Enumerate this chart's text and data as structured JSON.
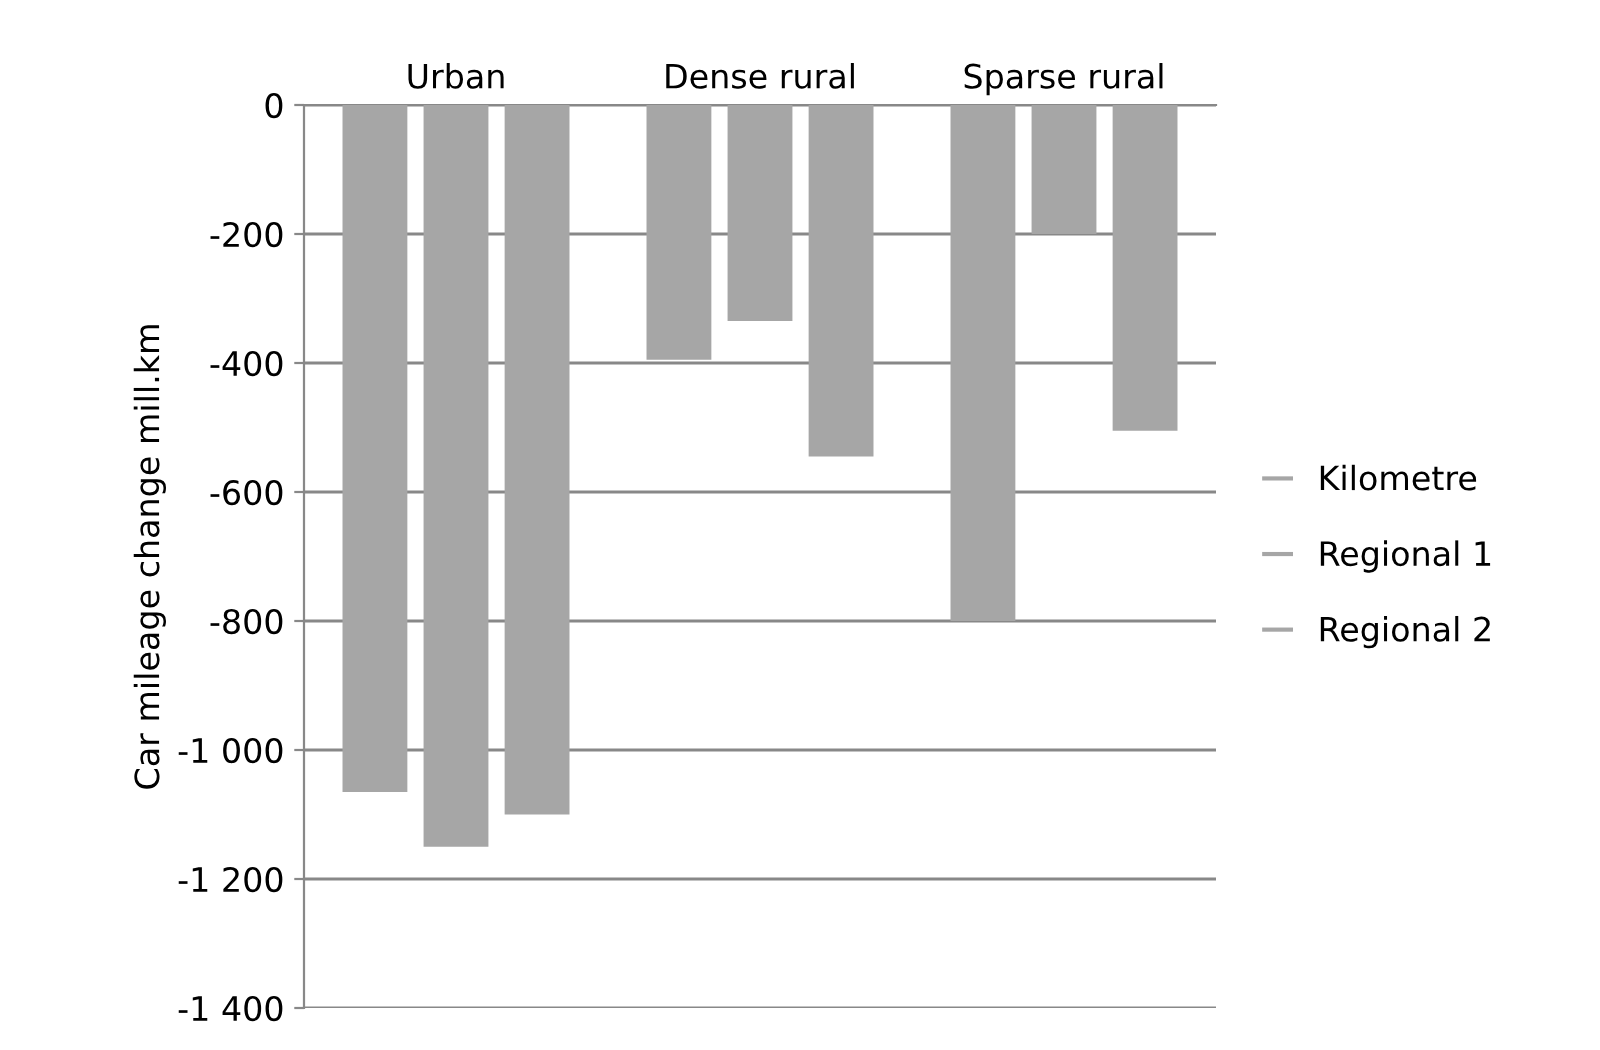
{
  "chart_data": {
    "type": "bar",
    "ylabel": "Car mileage change mill.km",
    "categories": [
      "Urban",
      "Dense rural",
      "Sparse rural"
    ],
    "series": [
      {
        "name": "Kilometre",
        "color": "#a6a6a6",
        "values": [
          -1065,
          -395,
          -800
        ]
      },
      {
        "name": "Regional 1",
        "color": "#a6a6a6",
        "values": [
          -1150,
          -335,
          -200
        ]
      },
      {
        "name": "Regional 2",
        "color": "#a6a6a6",
        "values": [
          -1100,
          -545,
          -505
        ]
      }
    ],
    "ylim": [
      -1400,
      0
    ],
    "yticks": [
      0,
      -200,
      -400,
      -600,
      -800,
      {
        "value": -1000,
        "label": "-1 000"
      },
      {
        "value": -1200,
        "label": "-1 200"
      },
      {
        "value": -1400,
        "label": "-1 400"
      }
    ],
    "grid": "y",
    "legend": "right"
  }
}
